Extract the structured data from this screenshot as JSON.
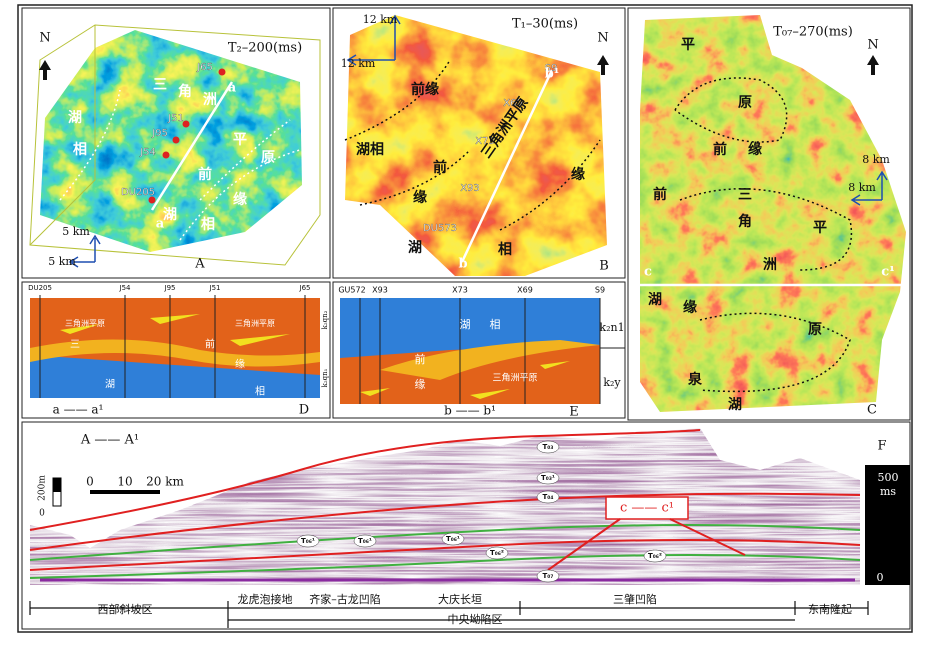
{
  "panel_a": {
    "label": "A",
    "horizon": "T₂–200(ms)",
    "north": "N",
    "scale": [
      "5 km",
      "5 km"
    ],
    "wells": [
      "J65",
      "J51",
      "J95",
      "J54",
      "DU205"
    ],
    "ends": [
      "a",
      "a"
    ],
    "facies": [
      "湖",
      "相",
      "三",
      "角",
      "洲",
      "平",
      "原",
      "前",
      "缘",
      "湖",
      "相"
    ]
  },
  "panel_b": {
    "label": "B",
    "horizon": "T₁–30(ms)",
    "north": "N",
    "scale": [
      "12 km",
      "12 km"
    ],
    "wells": [
      "S9",
      "X69",
      "X73",
      "X93",
      "DU573"
    ],
    "ends": [
      "b¹",
      "b"
    ],
    "facies": [
      "前缘",
      "湖相",
      "前",
      "缘",
      "三角洲平原",
      "缘",
      "湖",
      "相"
    ]
  },
  "panel_c": {
    "label": "C",
    "horizon": "T₀₇–270(ms)",
    "north": "N",
    "scale": [
      "8 km",
      "8 km"
    ],
    "ends": [
      "c",
      "c¹"
    ],
    "facies": [
      "平",
      "原",
      "前",
      "缘",
      "前",
      "三",
      "角",
      "洲",
      "平",
      "湖",
      "缘",
      "原",
      "泉",
      "湖"
    ]
  },
  "panel_d": {
    "label": "D",
    "section": "a —— a¹",
    "wells": [
      "DU205",
      "J54",
      "J95",
      "J51",
      "J65"
    ],
    "facies": [
      "三角洲平原",
      "三角洲平原",
      "三",
      "前",
      "缘",
      "湖",
      "相"
    ],
    "strata": [
      "k₂qn₂",
      "k₂qn₁"
    ]
  },
  "panel_e": {
    "label": "E",
    "section": "b —— b¹",
    "wells": [
      "GU572",
      "X93",
      "X73",
      "X69",
      "S9"
    ],
    "facies": [
      "湖",
      "相",
      "前",
      "缘",
      "三角洲平原"
    ],
    "strata": [
      "k₂n1",
      "k₂y"
    ]
  },
  "panel_f": {
    "label": "F",
    "section": "A —— A¹",
    "scale_bar": [
      "0",
      "10",
      "20 km"
    ],
    "vertical_scale": [
      "200m",
      "0"
    ],
    "time_scale": [
      "500",
      "ms",
      "0"
    ],
    "callout": "c —— c¹",
    "horizons": [
      "T₀₃",
      "T₀₃¹",
      "T₀₄",
      "T₀₆¹",
      "T₀₆¹",
      "T₀₆¹",
      "T₀₆²",
      "T₀₆²",
      "T₀₇"
    ],
    "regions": [
      "西部斜坡区",
      "龙虎泡接地",
      "齐家–古龙凹陷",
      "大庆长垣",
      "三肇凹陷",
      "东南隆起"
    ],
    "zone": "中央坳陷区"
  }
}
